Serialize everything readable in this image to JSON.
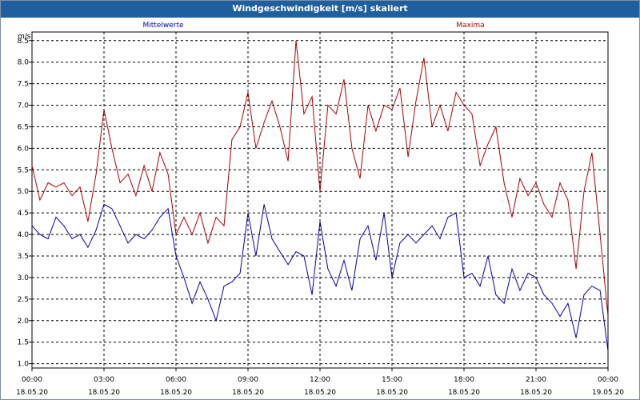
{
  "window": {
    "title": "Windgeschwindigkeit [m/s] skaliert"
  },
  "chart_data": {
    "type": "line",
    "title": "Windgeschwindigkeit [m/s] skaliert",
    "ylabel": "m/s",
    "ylim": [
      0.9,
      8.7
    ],
    "xlim": [
      0,
      24
    ],
    "y_ticks": [
      "1.0",
      "1.5",
      "2.0",
      "2.5",
      "3.0",
      "3.5",
      "4.0",
      "4.5",
      "5.0",
      "5.5",
      "6.0",
      "6.5",
      "7.0",
      "7.5",
      "8.0",
      "8.5"
    ],
    "x_ticks": [
      {
        "time": "00:00",
        "date": "18.05.20"
      },
      {
        "time": "03:00",
        "date": "18.05.20"
      },
      {
        "time": "06:00",
        "date": "18.05.20"
      },
      {
        "time": "09:00",
        "date": "18.05.20"
      },
      {
        "time": "12:00",
        "date": "18.05.20"
      },
      {
        "time": "15:00",
        "date": "18.05.20"
      },
      {
        "time": "18:00",
        "date": "18.05.20"
      },
      {
        "time": "21:00",
        "date": "18.05.20"
      },
      {
        "time": "00:00",
        "date": "19.05.20"
      }
    ],
    "grid": true,
    "legend_position": "top",
    "series": [
      {
        "name": "Mittelwerte",
        "color": "#0000aa",
        "x": [
          0.0,
          0.33,
          0.67,
          1.0,
          1.33,
          1.67,
          2.0,
          2.33,
          2.67,
          3.0,
          3.33,
          3.67,
          4.0,
          4.33,
          4.67,
          5.0,
          5.33,
          5.67,
          6.0,
          6.33,
          6.67,
          7.0,
          7.33,
          7.67,
          8.0,
          8.33,
          8.67,
          9.0,
          9.33,
          9.67,
          10.0,
          10.33,
          10.67,
          11.0,
          11.33,
          11.67,
          12.0,
          12.33,
          12.67,
          13.0,
          13.33,
          13.67,
          14.0,
          14.33,
          14.67,
          15.0,
          15.33,
          15.67,
          16.0,
          16.33,
          16.67,
          17.0,
          17.33,
          17.67,
          18.0,
          18.33,
          18.67,
          19.0,
          19.33,
          19.67,
          20.0,
          20.33,
          20.67,
          21.0,
          21.33,
          21.67,
          22.0,
          22.33,
          22.67,
          23.0,
          23.33,
          23.67,
          24.0
        ],
        "y": [
          4.2,
          4.0,
          3.9,
          4.4,
          4.2,
          3.9,
          4.0,
          3.7,
          4.1,
          4.7,
          4.6,
          4.2,
          3.8,
          4.0,
          3.9,
          4.1,
          4.4,
          4.6,
          3.5,
          3.0,
          2.4,
          2.9,
          2.5,
          2.0,
          2.8,
          2.9,
          3.1,
          4.5,
          3.5,
          4.7,
          3.9,
          3.6,
          3.3,
          3.6,
          3.5,
          2.6,
          4.3,
          3.2,
          2.8,
          3.4,
          2.7,
          3.9,
          4.2,
          3.4,
          4.5,
          3.0,
          3.8,
          4.0,
          3.8,
          4.0,
          4.2,
          3.9,
          4.4,
          4.5,
          3.0,
          3.1,
          2.8,
          3.5,
          2.6,
          2.4,
          3.2,
          2.7,
          3.1,
          3.0,
          2.6,
          2.4,
          2.1,
          2.4,
          1.6,
          2.6,
          2.8,
          2.7,
          1.3
        ]
      },
      {
        "name": "Maxima",
        "color": "#aa0000",
        "x": [
          0.0,
          0.33,
          0.67,
          1.0,
          1.33,
          1.67,
          2.0,
          2.33,
          2.67,
          3.0,
          3.33,
          3.67,
          4.0,
          4.33,
          4.67,
          5.0,
          5.33,
          5.67,
          6.0,
          6.33,
          6.67,
          7.0,
          7.33,
          7.67,
          8.0,
          8.33,
          8.67,
          9.0,
          9.33,
          9.67,
          10.0,
          10.33,
          10.67,
          11.0,
          11.33,
          11.67,
          12.0,
          12.33,
          12.67,
          13.0,
          13.33,
          13.67,
          14.0,
          14.33,
          14.67,
          15.0,
          15.33,
          15.67,
          16.0,
          16.33,
          16.67,
          17.0,
          17.33,
          17.67,
          18.0,
          18.33,
          18.67,
          19.0,
          19.33,
          19.67,
          20.0,
          20.33,
          20.67,
          21.0,
          21.33,
          21.67,
          22.0,
          22.33,
          22.67,
          23.0,
          23.33,
          23.67,
          24.0
        ],
        "y": [
          5.6,
          4.8,
          5.2,
          5.1,
          5.2,
          4.9,
          5.1,
          4.3,
          5.4,
          6.9,
          6.0,
          5.2,
          5.4,
          4.9,
          5.6,
          5.0,
          5.9,
          5.4,
          4.0,
          4.4,
          4.0,
          4.5,
          3.8,
          4.4,
          4.2,
          6.2,
          6.5,
          7.3,
          6.0,
          6.6,
          7.1,
          6.5,
          5.7,
          8.5,
          6.8,
          7.2,
          5.0,
          7.0,
          6.8,
          7.6,
          6.0,
          5.3,
          7.0,
          6.4,
          7.0,
          6.9,
          7.4,
          5.8,
          7.1,
          8.1,
          6.5,
          7.0,
          6.4,
          7.3,
          7.0,
          6.8,
          5.6,
          6.1,
          6.5,
          5.2,
          4.4,
          5.3,
          4.9,
          5.2,
          4.7,
          4.4,
          5.2,
          4.8,
          3.2,
          5.0,
          5.9,
          4.0,
          2.1
        ]
      }
    ]
  }
}
